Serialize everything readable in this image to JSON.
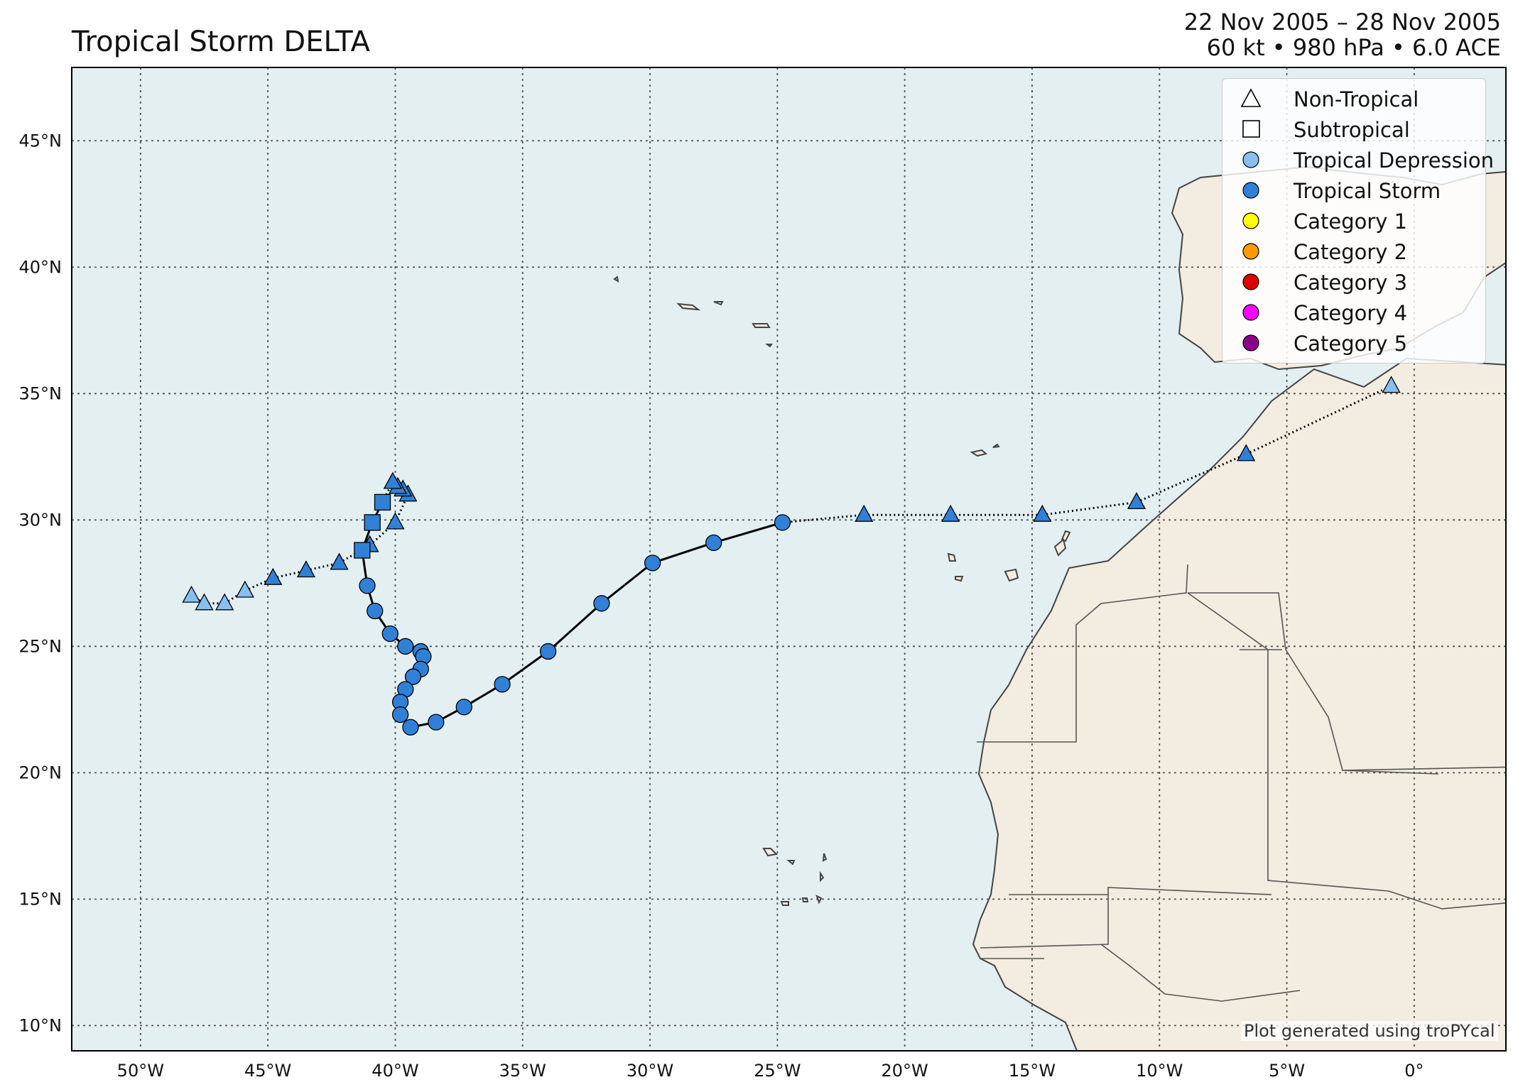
{
  "title": "Tropical Storm DELTA",
  "header_right": {
    "dates": "22 Nov 2005 – 28 Nov 2005",
    "stats": "60 kt • 980 hPa • 6.0 ACE"
  },
  "map": {
    "extent": {
      "lon": [
        -52.7,
        3.6
      ],
      "lat": [
        9.0,
        47.9
      ]
    },
    "gridlines": true,
    "colors": {
      "ocean": "#e4eff2",
      "land": "#f3ece0",
      "coast": "#444444",
      "border": "#444444",
      "grid": "#555555"
    },
    "lon_labels": [
      "50°W",
      "45°W",
      "40°W",
      "35°W",
      "30°W",
      "25°W",
      "20°W",
      "15°W",
      "10°W",
      "5°W",
      "0°"
    ],
    "lat_labels": [
      "45°N",
      "40°N",
      "35°N",
      "30°N",
      "25°N",
      "20°N",
      "15°N",
      "10°N"
    ]
  },
  "legend": {
    "position": "top-right",
    "items": [
      {
        "label": "Non-Tropical",
        "symbol": "triangle",
        "color": "#ffffff"
      },
      {
        "label": "Subtropical",
        "symbol": "square",
        "color": "#ffffff"
      },
      {
        "label": "Tropical Depression",
        "symbol": "circle",
        "color": "#87bff0"
      },
      {
        "label": "Tropical Storm",
        "symbol": "circle",
        "color": "#3080d8"
      },
      {
        "label": "Category 1",
        "symbol": "circle",
        "color": "#ffff00"
      },
      {
        "label": "Category 2",
        "symbol": "circle",
        "color": "#ff9a00"
      },
      {
        "label": "Category 3",
        "symbol": "circle",
        "color": "#e00000"
      },
      {
        "label": "Category 4",
        "symbol": "circle",
        "color": "#ff00ff"
      },
      {
        "label": "Category 5",
        "symbol": "circle",
        "color": "#8b008b"
      }
    ]
  },
  "credit": "Plot generated using troPYcal",
  "track": [
    {
      "lon": -48.0,
      "lat": 27.0,
      "type": "non-tropical",
      "intensity": "depression"
    },
    {
      "lon": -47.5,
      "lat": 26.7,
      "type": "non-tropical",
      "intensity": "depression"
    },
    {
      "lon": -46.7,
      "lat": 26.7,
      "type": "non-tropical",
      "intensity": "depression"
    },
    {
      "lon": -45.9,
      "lat": 27.2,
      "type": "non-tropical",
      "intensity": "depression"
    },
    {
      "lon": -44.8,
      "lat": 27.7,
      "type": "non-tropical",
      "intensity": "storm"
    },
    {
      "lon": -43.5,
      "lat": 28.0,
      "type": "non-tropical",
      "intensity": "storm"
    },
    {
      "lon": -42.2,
      "lat": 28.3,
      "type": "non-tropical",
      "intensity": "storm"
    },
    {
      "lon": -41.0,
      "lat": 29.0,
      "type": "non-tropical",
      "intensity": "storm"
    },
    {
      "lon": -40.0,
      "lat": 29.9,
      "type": "non-tropical",
      "intensity": "storm"
    },
    {
      "lon": -39.5,
      "lat": 31.0,
      "type": "non-tropical",
      "intensity": "storm"
    },
    {
      "lon": -39.7,
      "lat": 31.2,
      "type": "non-tropical",
      "intensity": "storm"
    },
    {
      "lon": -39.9,
      "lat": 31.3,
      "type": "non-tropical",
      "intensity": "storm"
    },
    {
      "lon": -40.1,
      "lat": 31.5,
      "type": "non-tropical",
      "intensity": "storm"
    },
    {
      "lon": -40.5,
      "lat": 30.7,
      "type": "subtropical",
      "intensity": "storm"
    },
    {
      "lon": -40.9,
      "lat": 29.9,
      "type": "subtropical",
      "intensity": "storm"
    },
    {
      "lon": -41.3,
      "lat": 28.8,
      "type": "subtropical",
      "intensity": "storm"
    },
    {
      "lon": -41.1,
      "lat": 27.4,
      "type": "tropical",
      "intensity": "storm"
    },
    {
      "lon": -40.8,
      "lat": 26.4,
      "type": "tropical",
      "intensity": "storm"
    },
    {
      "lon": -40.2,
      "lat": 25.5,
      "type": "tropical",
      "intensity": "storm"
    },
    {
      "lon": -39.6,
      "lat": 25.0,
      "type": "tropical",
      "intensity": "storm"
    },
    {
      "lon": -39.0,
      "lat": 24.8,
      "type": "tropical",
      "intensity": "storm"
    },
    {
      "lon": -38.9,
      "lat": 24.6,
      "type": "tropical",
      "intensity": "storm"
    },
    {
      "lon": -39.0,
      "lat": 24.1,
      "type": "tropical",
      "intensity": "storm"
    },
    {
      "lon": -39.3,
      "lat": 23.8,
      "type": "tropical",
      "intensity": "storm"
    },
    {
      "lon": -39.6,
      "lat": 23.3,
      "type": "tropical",
      "intensity": "storm"
    },
    {
      "lon": -39.8,
      "lat": 22.8,
      "type": "tropical",
      "intensity": "storm"
    },
    {
      "lon": -39.8,
      "lat": 22.3,
      "type": "tropical",
      "intensity": "storm"
    },
    {
      "lon": -39.4,
      "lat": 21.8,
      "type": "tropical",
      "intensity": "storm"
    },
    {
      "lon": -38.4,
      "lat": 22.0,
      "type": "tropical",
      "intensity": "storm"
    },
    {
      "lon": -37.3,
      "lat": 22.6,
      "type": "tropical",
      "intensity": "storm"
    },
    {
      "lon": -35.8,
      "lat": 23.5,
      "type": "tropical",
      "intensity": "storm"
    },
    {
      "lon": -34.0,
      "lat": 24.8,
      "type": "tropical",
      "intensity": "storm"
    },
    {
      "lon": -31.9,
      "lat": 26.7,
      "type": "tropical",
      "intensity": "storm"
    },
    {
      "lon": -29.9,
      "lat": 28.3,
      "type": "tropical",
      "intensity": "storm"
    },
    {
      "lon": -27.5,
      "lat": 29.1,
      "type": "tropical",
      "intensity": "storm"
    },
    {
      "lon": -24.8,
      "lat": 29.9,
      "type": "tropical",
      "intensity": "storm"
    },
    {
      "lon": -21.6,
      "lat": 30.2,
      "type": "non-tropical",
      "intensity": "storm"
    },
    {
      "lon": -18.2,
      "lat": 30.2,
      "type": "non-tropical",
      "intensity": "storm"
    },
    {
      "lon": -14.6,
      "lat": 30.2,
      "type": "non-tropical",
      "intensity": "storm"
    },
    {
      "lon": -10.9,
      "lat": 30.7,
      "type": "non-tropical",
      "intensity": "storm"
    },
    {
      "lon": -6.6,
      "lat": 32.6,
      "type": "non-tropical",
      "intensity": "storm"
    },
    {
      "lon": -0.9,
      "lat": 35.3,
      "type": "non-tropical",
      "intensity": "depression"
    }
  ]
}
